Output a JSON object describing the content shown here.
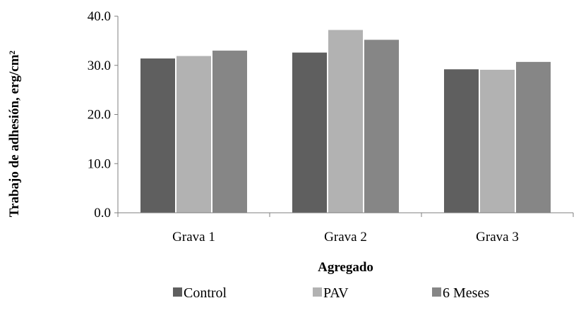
{
  "chart_data": {
    "type": "bar",
    "title": "",
    "xlabel": "Agregado",
    "ylabel": "Trabajo de adhesión, erg/cm²",
    "ylim": [
      0,
      40
    ],
    "yticks": [
      "0.0",
      "10.0",
      "20.0",
      "30.0",
      "40.0"
    ],
    "categories": [
      "Grava 1",
      "Grava 2",
      "Grava 3"
    ],
    "series": [
      {
        "name": "Control",
        "values": [
          31.4,
          32.6,
          29.2
        ],
        "color": "#5f5f5f"
      },
      {
        "name": "PAV",
        "values": [
          31.9,
          37.2,
          29.1
        ],
        "color": "#b2b2b2"
      },
      {
        "name": "6 Meses",
        "values": [
          33.0,
          35.2,
          30.7
        ],
        "color": "#868686"
      }
    ],
    "grid": false,
    "legend_position": "bottom"
  }
}
